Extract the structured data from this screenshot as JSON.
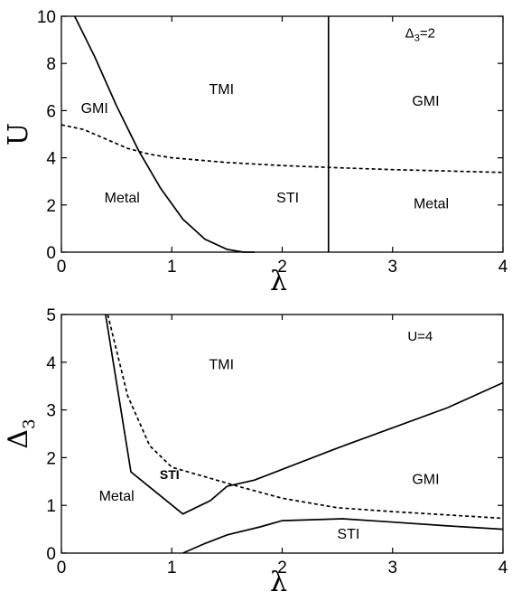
{
  "chart_data": [
    {
      "type": "line",
      "xlabel": "λ",
      "ylabel": "U",
      "xlim": [
        0,
        4
      ],
      "ylim": [
        0,
        10
      ],
      "xticks": [
        0,
        1,
        2,
        3,
        4
      ],
      "yticks": [
        0,
        2,
        4,
        6,
        8,
        10
      ],
      "grid": false,
      "annotation": {
        "main": "Δ",
        "sub": "3",
        "rest": "=2",
        "x": 3.25,
        "y": 9.1
      },
      "series": [
        {
          "style": "solid",
          "x": [
            0.12,
            0.3,
            0.5,
            0.7,
            0.9,
            1.1,
            1.3,
            1.5,
            1.65,
            1.75
          ],
          "y": [
            10.0,
            8.3,
            6.2,
            4.3,
            2.7,
            1.4,
            0.55,
            0.12,
            0.0,
            0.0
          ]
        },
        {
          "style": "dashed",
          "x": [
            0,
            0.2,
            0.4,
            0.6,
            0.8,
            1.0,
            1.5,
            2.0,
            2.5,
            3.0,
            3.5,
            4.0
          ],
          "y": [
            5.4,
            5.2,
            4.8,
            4.4,
            4.15,
            4.0,
            3.8,
            3.67,
            3.58,
            3.5,
            3.44,
            3.38
          ]
        },
        {
          "style": "solid",
          "x": [
            2.42,
            2.42
          ],
          "y": [
            0,
            10
          ]
        }
      ],
      "regions": [
        {
          "label": "GMI",
          "x": 0.3,
          "y": 5.9
        },
        {
          "label": "TMI",
          "x": 1.45,
          "y": 6.7
        },
        {
          "label": "GMI",
          "x": 3.3,
          "y": 6.2
        },
        {
          "label": "Metal",
          "x": 0.55,
          "y": 2.1
        },
        {
          "label": "STI",
          "x": 2.05,
          "y": 2.1
        },
        {
          "label": "Metal",
          "x": 3.35,
          "y": 1.85
        }
      ]
    },
    {
      "type": "line",
      "xlabel": "λ",
      "ylabel": "Δ",
      "ylabel_sub": "3",
      "xlim": [
        0,
        4
      ],
      "ylim": [
        0,
        5
      ],
      "xticks": [
        0,
        1,
        2,
        3,
        4
      ],
      "yticks": [
        0,
        1,
        2,
        3,
        4,
        5
      ],
      "grid": false,
      "annotation": {
        "main": "U=4",
        "x": 3.25,
        "y": 4.45
      },
      "series": [
        {
          "style": "solid",
          "x": [
            0.4,
            0.63,
            1.1,
            1.35,
            1.5,
            1.75,
            2.5,
            3.5,
            4.0
          ],
          "y": [
            5.0,
            1.7,
            0.82,
            1.1,
            1.4,
            1.53,
            2.2,
            3.05,
            3.57
          ]
        },
        {
          "style": "dashed",
          "x": [
            0.42,
            0.6,
            0.8,
            1.0,
            1.3,
            1.6,
            2.0,
            2.5,
            3.0,
            3.5,
            4.0
          ],
          "y": [
            5.0,
            3.3,
            2.25,
            1.8,
            1.6,
            1.4,
            1.15,
            0.95,
            0.87,
            0.8,
            0.73
          ]
        },
        {
          "style": "solid",
          "x": [
            1.1,
            1.3,
            1.5,
            1.8,
            2.0,
            2.55,
            3.0,
            3.5,
            4.0
          ],
          "y": [
            0.0,
            0.2,
            0.38,
            0.55,
            0.68,
            0.72,
            0.65,
            0.57,
            0.5
          ]
        }
      ],
      "regions": [
        {
          "label": "TMI",
          "x": 1.45,
          "y": 3.85,
          "bold": false
        },
        {
          "label": "STI",
          "x": 0.98,
          "y": 1.55,
          "bold": true
        },
        {
          "label": "Metal",
          "x": 0.5,
          "y": 1.1,
          "bold": false
        },
        {
          "label": "GMI",
          "x": 3.3,
          "y": 1.45,
          "bold": false
        },
        {
          "label": "STI",
          "x": 2.6,
          "y": 0.3,
          "bold": false
        }
      ]
    }
  ]
}
